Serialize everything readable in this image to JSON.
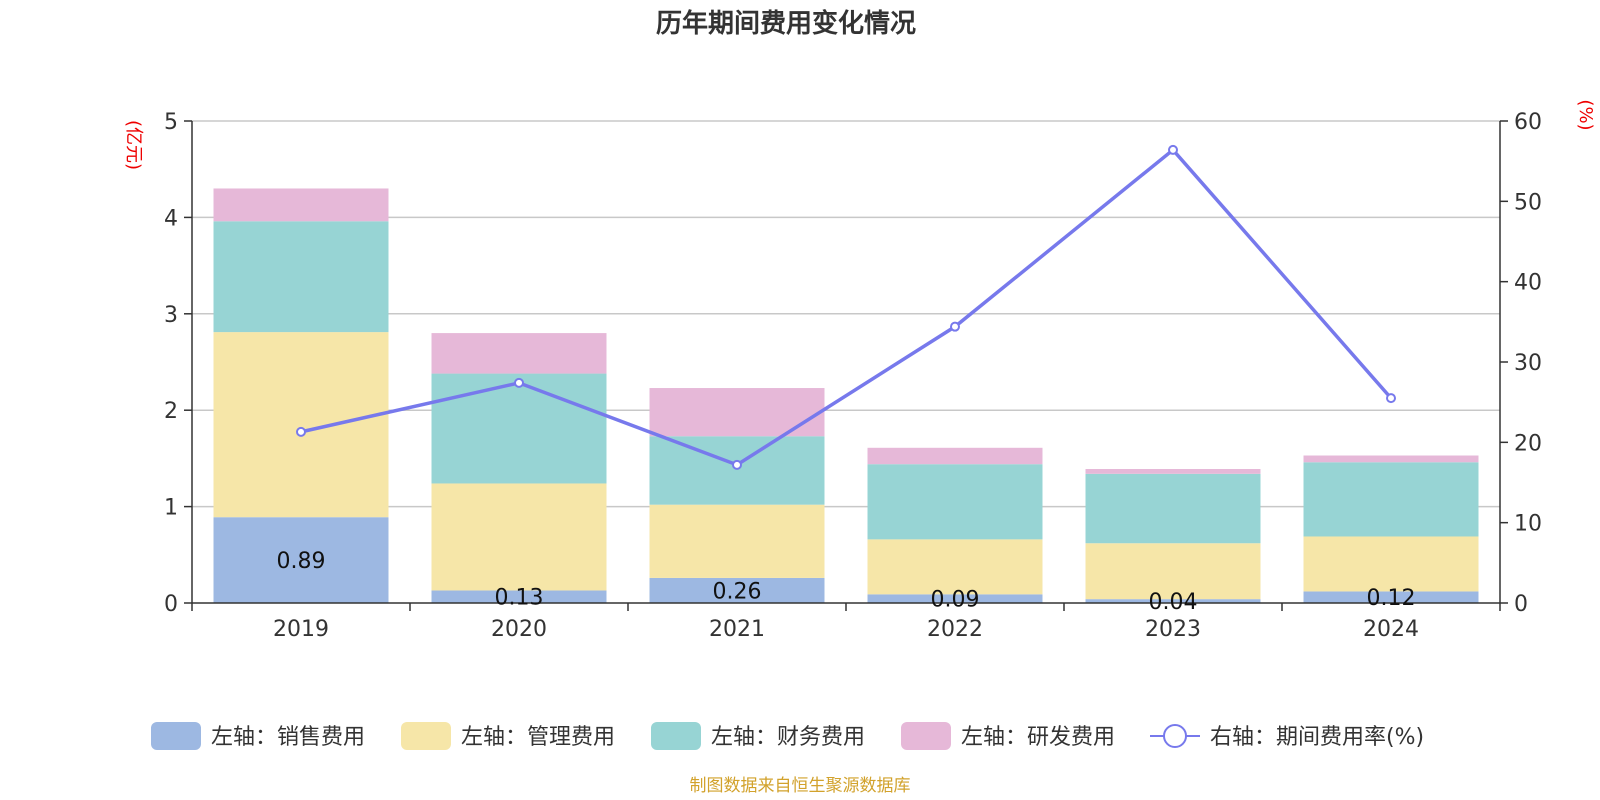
{
  "colors": {
    "sales": "#9db8e2",
    "admin": "#f6e6a8",
    "finance": "#97d4d4",
    "rnd": "#e6b8d8",
    "rate_line": "#7779ec",
    "unit_text": "#ee0000",
    "source_text": "#d2a22c"
  },
  "chart_data": {
    "type": "bar",
    "title": "历年期间费用变化情况",
    "categories": [
      "2019",
      "2020",
      "2021",
      "2022",
      "2023",
      "2024"
    ],
    "left_axis": {
      "unit": "(亿元)",
      "ylim": [
        0,
        5
      ],
      "ticks": [
        "0",
        "1",
        "2",
        "3",
        "4",
        "5"
      ]
    },
    "right_axis": {
      "unit": "(%)",
      "ylim": [
        0,
        60
      ],
      "ticks": [
        "0",
        "10",
        "20",
        "30",
        "40",
        "50",
        "60"
      ]
    },
    "series": [
      {
        "key": "sales",
        "name": "左轴：销售费用",
        "axis": "left",
        "type": "bar",
        "stack": true,
        "values": [
          0.89,
          0.13,
          0.26,
          0.09,
          0.04,
          0.12
        ],
        "labels": [
          "0.89",
          "0.13",
          "0.26",
          "0.09",
          "0.04",
          "0.12"
        ]
      },
      {
        "key": "admin",
        "name": "左轴：管理费用",
        "axis": "left",
        "type": "bar",
        "stack": true,
        "values": [
          1.92,
          1.11,
          0.76,
          0.57,
          0.58,
          0.57
        ]
      },
      {
        "key": "finance",
        "name": "左轴：财务费用",
        "axis": "left",
        "type": "bar",
        "stack": true,
        "values": [
          1.15,
          1.14,
          0.71,
          0.78,
          0.72,
          0.77
        ]
      },
      {
        "key": "rnd",
        "name": "左轴：研发费用",
        "axis": "left",
        "type": "bar",
        "stack": true,
        "values": [
          0.34,
          0.42,
          0.5,
          0.17,
          0.05,
          0.07
        ]
      },
      {
        "key": "rate_line",
        "name": "右轴：期间费用率(%)",
        "axis": "right",
        "type": "line",
        "values": [
          21.3,
          27.4,
          17.2,
          34.4,
          56.4,
          25.5
        ]
      }
    ],
    "grid": true,
    "legend": "bottom"
  },
  "source": "制图数据来自恒生聚源数据库"
}
